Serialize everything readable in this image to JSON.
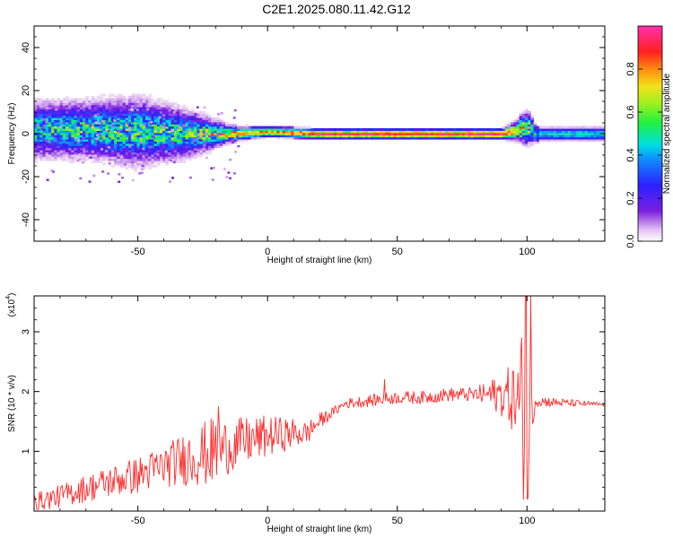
{
  "title": "C2E1.2025.080.11.42.G12",
  "chart_data": [
    {
      "type": "heatmap",
      "xlabel": "Height of straight line (km)",
      "ylabel": "Frequency (Hz)",
      "xlim": [
        -90,
        130
      ],
      "ylim": [
        -50,
        50
      ],
      "x_ticks": [
        -50,
        0,
        50,
        100
      ],
      "y_ticks": [
        -40,
        -20,
        0,
        20,
        40
      ],
      "colorbar": {
        "label": "Normalized spectral amplitude",
        "range": [
          0.0,
          1.0
        ],
        "ticks": [
          0.0,
          0.2,
          0.4,
          0.6,
          0.8
        ],
        "colormap": "rainbow (white-purple-blue-cyan-green-yellow-red-magenta)"
      },
      "signal_profile": [
        {
          "x": -88,
          "center_hz": 2,
          "spread_hz": 10,
          "peak_amplitude": 0.45
        },
        {
          "x": -70,
          "center_hz": 2,
          "spread_hz": 10,
          "peak_amplitude": 0.5
        },
        {
          "x": -50,
          "center_hz": 1,
          "spread_hz": 12,
          "peak_amplitude": 0.5
        },
        {
          "x": -30,
          "center_hz": 0,
          "spread_hz": 8,
          "peak_amplitude": 0.5
        },
        {
          "x": -15,
          "center_hz": 0,
          "spread_hz": 3,
          "peak_amplitude": 0.7
        },
        {
          "x": 0,
          "center_hz": 1,
          "spread_hz": 2,
          "peak_amplitude": 0.8
        },
        {
          "x": 20,
          "center_hz": 0,
          "spread_hz": 2,
          "peak_amplitude": 0.9
        },
        {
          "x": 50,
          "center_hz": 0,
          "spread_hz": 2,
          "peak_amplitude": 0.95
        },
        {
          "x": 90,
          "center_hz": 0,
          "spread_hz": 2,
          "peak_amplitude": 0.95
        },
        {
          "x": 100,
          "center_hz": 3,
          "spread_hz": 6,
          "peak_amplitude": 0.6
        },
        {
          "x": 103,
          "center_hz": 0,
          "spread_hz": 3,
          "peak_amplitude": 0.45
        },
        {
          "x": 130,
          "center_hz": 0,
          "spread_hz": 3,
          "peak_amplitude": 0.45
        }
      ]
    },
    {
      "type": "line",
      "xlabel": "Height of straight line (km)",
      "ylabel": "SNR (10 * v/v)",
      "y_multiplier": "(x10",
      "y_multiplier_exp": "4",
      "y_multiplier_close": ")",
      "xlim": [
        -90,
        130
      ],
      "ylim": [
        0,
        3.6
      ],
      "x_ticks": [
        -50,
        0,
        50,
        100
      ],
      "y_ticks": [
        1,
        2,
        3
      ],
      "color": "#ff2a2a",
      "series": [
        {
          "trend": [
            {
              "x": -90,
              "y": 0.15
            },
            {
              "x": -80,
              "y": 0.25
            },
            {
              "x": -70,
              "y": 0.38
            },
            {
              "x": -60,
              "y": 0.5
            },
            {
              "x": -50,
              "y": 0.6
            },
            {
              "x": -40,
              "y": 0.75
            },
            {
              "x": -30,
              "y": 0.9
            },
            {
              "x": -20,
              "y": 1.0
            },
            {
              "x": -10,
              "y": 1.15
            },
            {
              "x": 0,
              "y": 1.25
            },
            {
              "x": 10,
              "y": 1.3
            },
            {
              "x": 15,
              "y": 1.3
            },
            {
              "x": 20,
              "y": 1.5
            },
            {
              "x": 25,
              "y": 1.65
            },
            {
              "x": 30,
              "y": 1.8
            },
            {
              "x": 40,
              "y": 1.85
            },
            {
              "x": 50,
              "y": 1.9
            },
            {
              "x": 60,
              "y": 1.9
            },
            {
              "x": 70,
              "y": 1.95
            },
            {
              "x": 80,
              "y": 1.95
            },
            {
              "x": 90,
              "y": 1.95
            },
            {
              "x": 95,
              "y": 1.9
            },
            {
              "x": 100,
              "y": 1.5
            },
            {
              "x": 103,
              "y": 1.85
            },
            {
              "x": 110,
              "y": 1.82
            },
            {
              "x": 120,
              "y": 1.8
            },
            {
              "x": 130,
              "y": 1.78
            }
          ],
          "noise_envelope": [
            {
              "x": -90,
              "amp": 0.15
            },
            {
              "x": -40,
              "amp": 0.35
            },
            {
              "x": -20,
              "amp": 0.6
            },
            {
              "x": -15,
              "amp": 0.45
            },
            {
              "x": 0,
              "amp": 0.35
            },
            {
              "x": 15,
              "amp": 0.2
            },
            {
              "x": 25,
              "amp": 0.08
            },
            {
              "x": 40,
              "amp": 0.1
            },
            {
              "x": 80,
              "amp": 0.12
            },
            {
              "x": 90,
              "amp": 0.35
            },
            {
              "x": 95,
              "amp": 0.6
            },
            {
              "x": 98,
              "amp": 1.4
            },
            {
              "x": 101,
              "amp": 1.6
            },
            {
              "x": 103,
              "amp": 0.1
            },
            {
              "x": 130,
              "amp": 0.03
            }
          ],
          "peaks": [
            {
              "x": -19,
              "y": 1.75
            },
            {
              "x": 45,
              "y": 2.2
            },
            {
              "x": 99.5,
              "y": 3.6
            },
            {
              "x": 101.5,
              "y": 3.6
            },
            {
              "x": 100,
              "y": 0.2
            }
          ]
        }
      ]
    }
  ]
}
